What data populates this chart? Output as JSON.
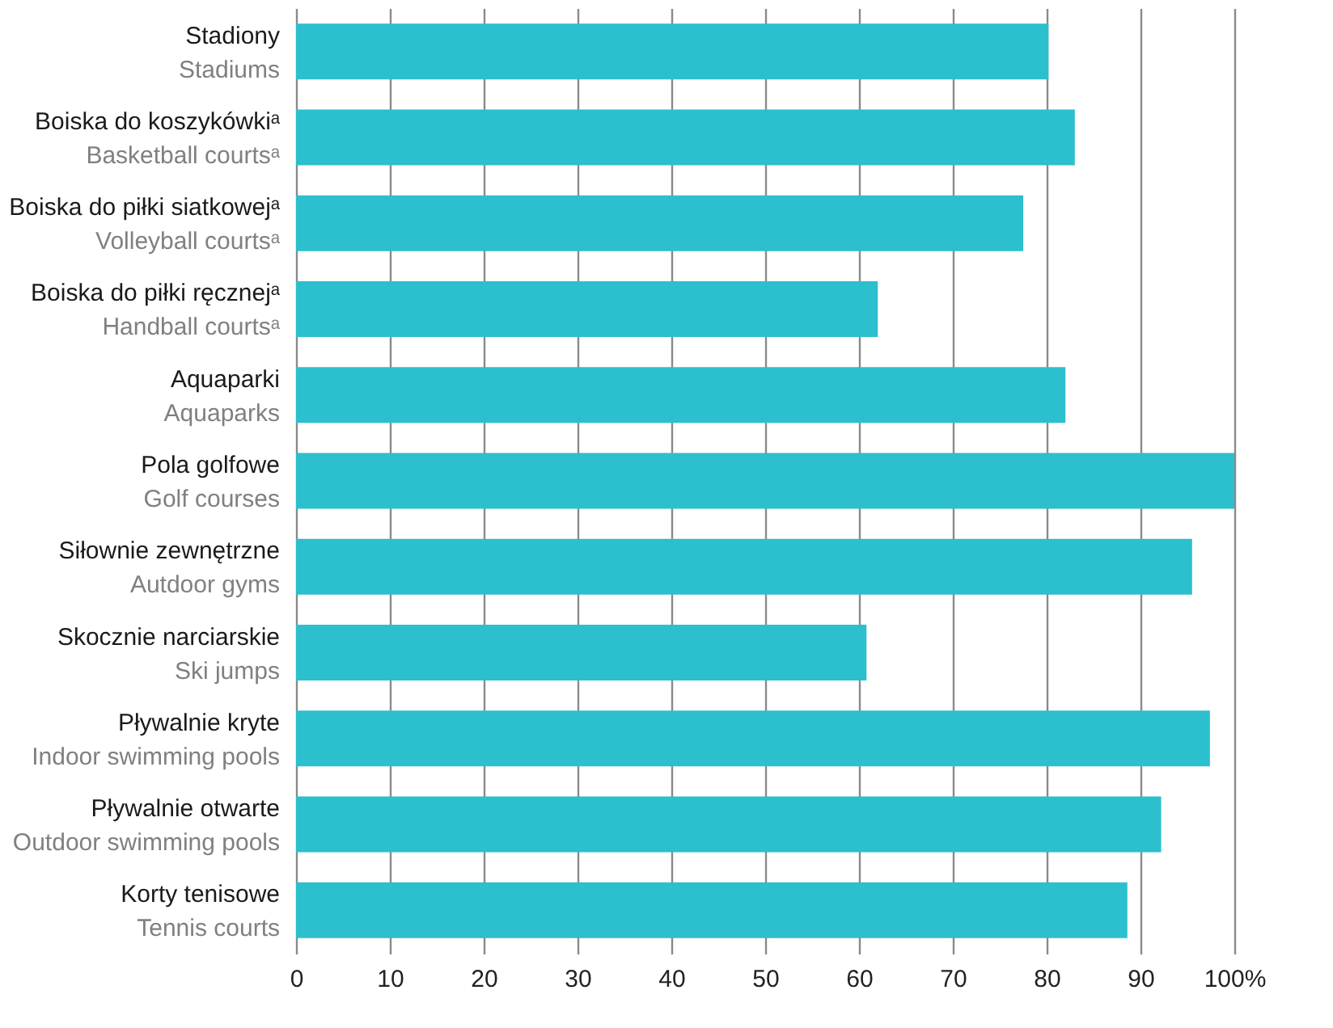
{
  "chart_data": {
    "type": "bar",
    "orientation": "horizontal",
    "categories": [
      "Stadiony\nStadiums",
      "Boiska do koszykówkiᵃ\nBasketball courtsᵃ",
      "Boiska do piłki siatkowejᵃ\nVolleyball courtsᵃ",
      "Boiska do piłki ręcznejᵃ\nHandball courtsᵃ",
      "Aquaparki\nAquaparks",
      "Pola golfowe\nGolf courses",
      "Siłownie zewnętrzne\nAutdoor gyms",
      "Skocznie narciarskie\nSki jumps",
      "Pływalnie kryte\nIndoor swimming pools",
      "Pływalnie otwarte\nOutdoor swimming pools",
      "Korty tenisowe\nTennis courts"
    ],
    "values": [
      80.2,
      83.0,
      77.5,
      62.0,
      82.0,
      100,
      95.5,
      60.8,
      97.4,
      92.2,
      88.6
    ],
    "color": "#2cbfcd",
    "xlim": [
      0,
      100
    ],
    "xticks": [
      0,
      10,
      20,
      30,
      40,
      50,
      60,
      70,
      80,
      90,
      {
        "value": 100,
        "label": "100%"
      }
    ],
    "grid": "x"
  }
}
